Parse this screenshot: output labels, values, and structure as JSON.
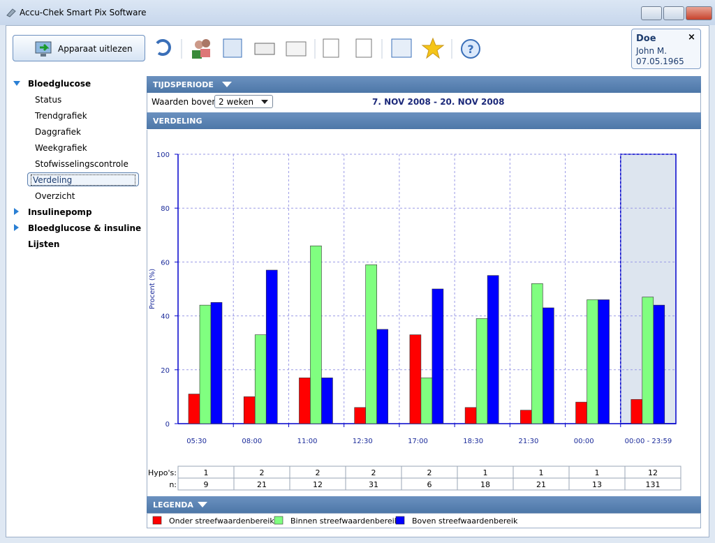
{
  "window": {
    "title": "Accu-Chek Smart Pix Software"
  },
  "toolbar": {
    "read_button": "Apparaat uitlezen"
  },
  "patient": {
    "last_name": "Doe",
    "first_name": "John M.",
    "birth_date": "07.05.1965"
  },
  "sidebar": {
    "groups": [
      {
        "label": "Bloedglucose",
        "children": [
          "Status",
          "Trendgrafiek",
          "Daggrafiek",
          "Weekgrafiek",
          "Stofwisselingscontrole",
          "Verdeling",
          "Overzicht"
        ]
      },
      {
        "label": "Insulinepomp"
      },
      {
        "label": "Bloedglucose & insuline"
      },
      {
        "label": "Lijsten"
      }
    ]
  },
  "period": {
    "header": "TIJDSPERIODE",
    "label": "Waarden boven",
    "select": "2 weken",
    "range": "7. NOV 2008 - 20. NOV 2008"
  },
  "distribution_header": "VERDELING",
  "legend_header": "LEGENDA",
  "chart_data": {
    "type": "bar",
    "y_label": "Procent (%)",
    "categories": [
      "05:30",
      "08:00",
      "11:00",
      "12:30",
      "17:00",
      "18:30",
      "21:30",
      "00:00",
      "00:00 - 23:59"
    ],
    "series": [
      {
        "name": "Onder streefwaardenbereik",
        "color": "#ff0000",
        "values": [
          11,
          10,
          17,
          6,
          33,
          6,
          5,
          8,
          9
        ]
      },
      {
        "name": "Binnen streefwaardenbereik",
        "color": "#80ff80",
        "values": [
          44,
          33,
          66,
          59,
          17,
          39,
          52,
          46,
          47
        ]
      },
      {
        "name": "Boven streefwaardenbereik",
        "color": "#0000ff",
        "values": [
          45,
          57,
          17,
          35,
          50,
          55,
          43,
          46,
          44
        ]
      }
    ],
    "ylim": [
      0,
      100
    ],
    "yticks": [
      0,
      20,
      40,
      60,
      80,
      100
    ],
    "grid": true,
    "table": {
      "rows": [
        {
          "label": "Hypo's:",
          "values": [
            1,
            2,
            2,
            2,
            2,
            1,
            1,
            1,
            12
          ]
        },
        {
          "label": "n:",
          "values": [
            9,
            21,
            12,
            31,
            6,
            18,
            21,
            13,
            131
          ]
        }
      ]
    }
  }
}
